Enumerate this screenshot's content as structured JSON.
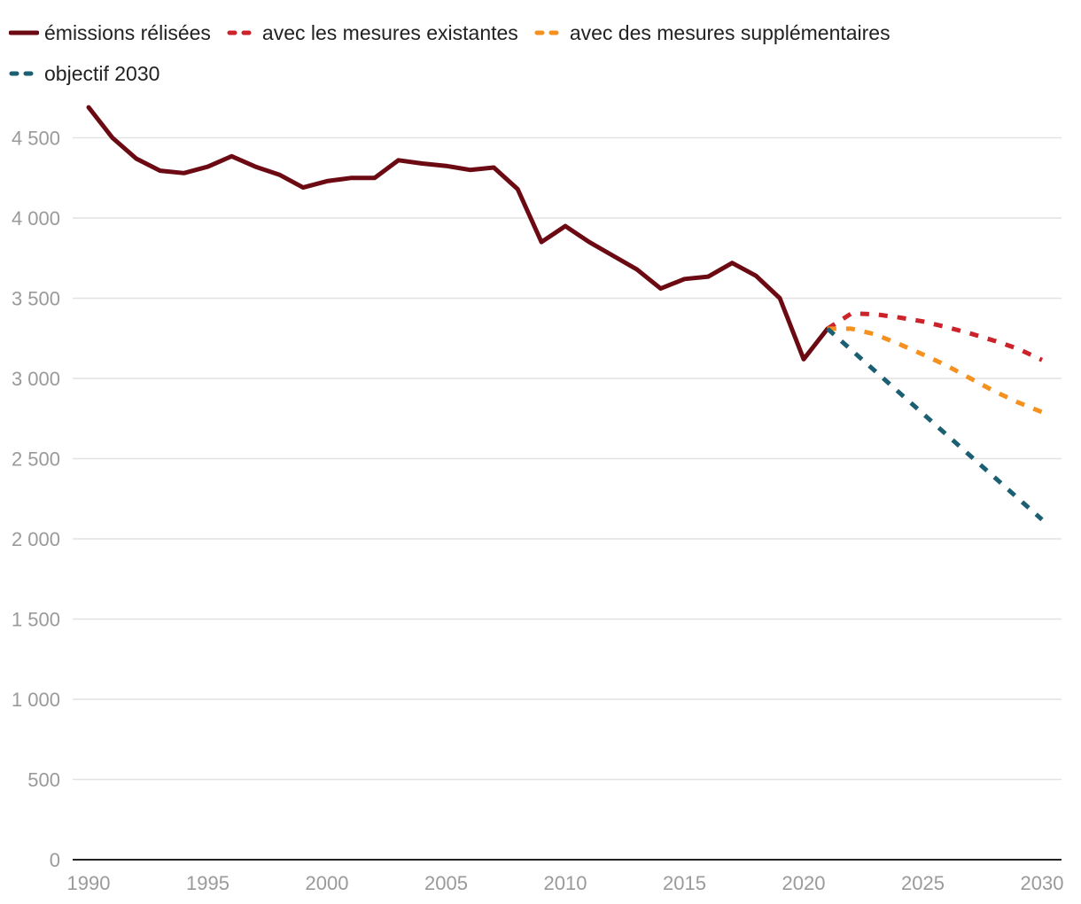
{
  "chart_data": {
    "type": "line",
    "title": "",
    "xlabel": "",
    "ylabel": "",
    "xlim": [
      1990,
      2030
    ],
    "ylim": [
      0,
      4800
    ],
    "y_ticks": [
      0,
      500,
      1000,
      1500,
      2000,
      2500,
      3000,
      3500,
      4000,
      4500
    ],
    "y_tick_labels": [
      "0",
      "500",
      "1 000",
      "1 500",
      "2 000",
      "2 500",
      "3 000",
      "3 500",
      "4 000",
      "4 500"
    ],
    "x_ticks": [
      1990,
      1995,
      2000,
      2005,
      2010,
      2015,
      2020,
      2025,
      2030
    ],
    "x_tick_labels": [
      "1990",
      "1995",
      "2000",
      "2005",
      "2010",
      "2015",
      "2020",
      "2025",
      "2030"
    ],
    "grid": true,
    "legend_position": "top-left",
    "series": [
      {
        "name": "émissions rélisées",
        "color": "#6b0a13",
        "style": "solid",
        "x": [
          1990,
          1991,
          1992,
          1993,
          1994,
          1995,
          1996,
          1997,
          1998,
          1999,
          2000,
          2001,
          2002,
          2003,
          2004,
          2005,
          2006,
          2007,
          2008,
          2009,
          2010,
          2011,
          2012,
          2013,
          2014,
          2015,
          2016,
          2017,
          2018,
          2019,
          2020,
          2021
        ],
        "values": [
          4690,
          4500,
          4370,
          4295,
          4280,
          4320,
          4385,
          4320,
          4270,
          4190,
          4230,
          4250,
          4250,
          4360,
          4340,
          4325,
          4300,
          4315,
          4180,
          3850,
          3950,
          3850,
          3765,
          3680,
          3560,
          3620,
          3635,
          3720,
          3640,
          3500,
          3120,
          3310
        ]
      },
      {
        "name": "avec les mesures existantes",
        "color": "#cc2229",
        "style": "dashed",
        "x": [
          2021,
          2022,
          2023,
          2024,
          2025,
          2026,
          2027,
          2028,
          2029,
          2030
        ],
        "values": [
          3310,
          3405,
          3400,
          3380,
          3355,
          3320,
          3280,
          3235,
          3185,
          3115
        ]
      },
      {
        "name": "avec des mesures supplémentaires",
        "color": "#f5911e",
        "style": "dashed",
        "x": [
          2021,
          2022,
          2023,
          2024,
          2025,
          2026,
          2027,
          2028,
          2029,
          2030
        ],
        "values": [
          3310,
          3310,
          3275,
          3215,
          3150,
          3080,
          3000,
          2920,
          2850,
          2790
        ]
      },
      {
        "name": "objectif 2030",
        "color": "#1c5f72",
        "style": "dashed",
        "x": [
          2021,
          2030
        ],
        "values": [
          3310,
          2120
        ]
      }
    ]
  }
}
